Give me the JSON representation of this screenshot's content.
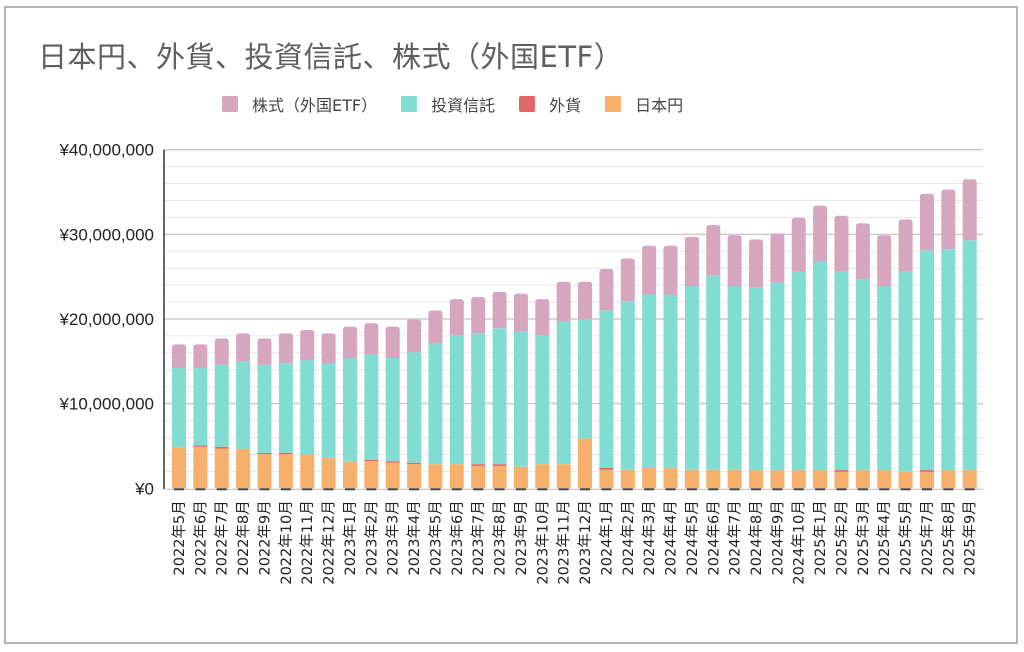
{
  "chart_data": {
    "type": "bar",
    "stacked": true,
    "title": "日本円、外貨、投資信託、株式（外国ETF）",
    "xlabel": "",
    "ylabel": "",
    "ylim": [
      0,
      40000000
    ],
    "y_ticks": [
      0,
      10000000,
      20000000,
      30000000,
      40000000
    ],
    "y_tick_labels": [
      "¥0",
      "¥10,000,000",
      "¥20,000,000",
      "¥30,000,000",
      "¥40,000,000"
    ],
    "minor_grid_step": 2000000,
    "grid": true,
    "legend_position": "top",
    "legend": [
      "株式（外国ETF）",
      "投資信託",
      "外貨",
      "日本円"
    ],
    "categories": [
      "2022年5月",
      "2022年6月",
      "2022年7月",
      "2022年8月",
      "2022年9月",
      "2022年10月",
      "2022年11月",
      "2022年12月",
      "2023年1月",
      "2023年2月",
      "2023年3月",
      "2023年4月",
      "2023年5月",
      "2023年6月",
      "2023年7月",
      "2023年8月",
      "2023年9月",
      "2023年10月",
      "2023年11月",
      "2023年12月",
      "2024年1月",
      "2024年2月",
      "2024年3月",
      "2024年4月",
      "2024年5月",
      "2024年6月",
      "2024年7月",
      "2024年8月",
      "2024年9月",
      "2024年10月",
      "2025年1月",
      "2025年2月",
      "2025年3月",
      "2025年4月",
      "2025年5月",
      "2025年7月",
      "2025年8月",
      "2025年9月"
    ],
    "series": [
      {
        "name": "日本円",
        "color": "#f6b06b",
        "values": [
          4850000,
          4900000,
          4700000,
          4650000,
          4050000,
          4050000,
          4000000,
          3600000,
          3150000,
          3200000,
          3050000,
          2850000,
          2850000,
          2850000,
          2650000,
          2650000,
          2550000,
          2850000,
          2850000,
          5900000,
          2200000,
          2200000,
          2400000,
          2400000,
          2200000,
          2200000,
          2200000,
          2150000,
          2150000,
          2150000,
          2150000,
          1950000,
          2150000,
          2150000,
          1950000,
          1950000,
          2150000,
          2150000
        ]
      },
      {
        "name": "外貨",
        "color": "#e06666",
        "values": [
          0,
          150000,
          200000,
          0,
          150000,
          150000,
          0,
          0,
          0,
          150000,
          150000,
          150000,
          0,
          0,
          200000,
          200000,
          0,
          0,
          0,
          0,
          200000,
          0,
          0,
          0,
          0,
          0,
          0,
          0,
          0,
          0,
          0,
          200000,
          0,
          0,
          0,
          200000,
          0,
          0
        ]
      },
      {
        "name": "投資信託",
        "color": "#81ddd1",
        "values": [
          9350000,
          9150000,
          9700000,
          10350000,
          10400000,
          10600000,
          11150000,
          11150000,
          12250000,
          12450000,
          12200000,
          13050000,
          14250000,
          15250000,
          15450000,
          16050000,
          15950000,
          15250000,
          16850000,
          14050000,
          18650000,
          19900000,
          20500000,
          20500000,
          21700000,
          22950000,
          21700000,
          21550000,
          22150000,
          23450000,
          24650000,
          23450000,
          22550000,
          21750000,
          23650000,
          25950000,
          26100000,
          27150000
        ]
      },
      {
        "name": "株式（外国ETF）",
        "color": "#d6a5c0",
        "values": [
          2800000,
          2800000,
          3100000,
          3300000,
          3100000,
          3500000,
          3550000,
          3550000,
          3700000,
          3700000,
          3700000,
          3900000,
          3900000,
          4250000,
          4300000,
          4300000,
          4500000,
          4250000,
          4700000,
          4450000,
          4850000,
          5050000,
          5750000,
          5750000,
          5800000,
          5950000,
          6000000,
          5700000,
          5800000,
          6350000,
          6600000,
          6600000,
          6600000,
          6000000,
          6150000,
          6700000,
          7050000,
          7200000
        ]
      }
    ]
  }
}
